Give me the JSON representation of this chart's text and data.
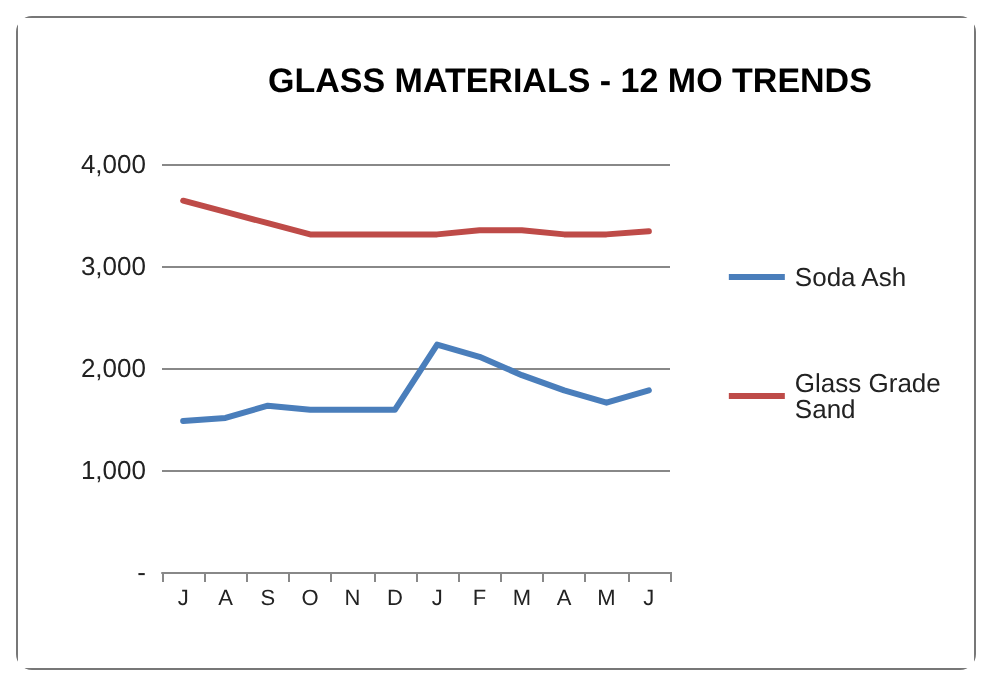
{
  "chart_data": {
    "type": "line",
    "title": "GLASS MATERIALS - 12 MO TRENDS",
    "categories": [
      "J",
      "A",
      "S",
      "O",
      "N",
      "D",
      "J",
      "F",
      "M",
      "A",
      "M",
      "J"
    ],
    "series": [
      {
        "name": "Soda Ash",
        "color": "#4a7ebb",
        "values": [
          1480,
          1510,
          1630,
          1590,
          1590,
          1590,
          2230,
          2110,
          1930,
          1780,
          1660,
          1780
        ]
      },
      {
        "name": "Glass Grade Sand",
        "color": "#be4b48",
        "values": [
          3640,
          3530,
          3420,
          3310,
          3310,
          3310,
          3310,
          3350,
          3350,
          3310,
          3310,
          3340
        ]
      }
    ],
    "ylim": [
      0,
      4000
    ],
    "yticks": [
      {
        "value": 0,
        "label": "-"
      },
      {
        "value": 1000,
        "label": "1,000"
      },
      {
        "value": 2000,
        "label": "2,000"
      },
      {
        "value": 3000,
        "label": "3,000"
      },
      {
        "value": 4000,
        "label": "4,000"
      }
    ],
    "grid": "y",
    "legend": "right",
    "marker": "none",
    "line_style": "solid"
  }
}
